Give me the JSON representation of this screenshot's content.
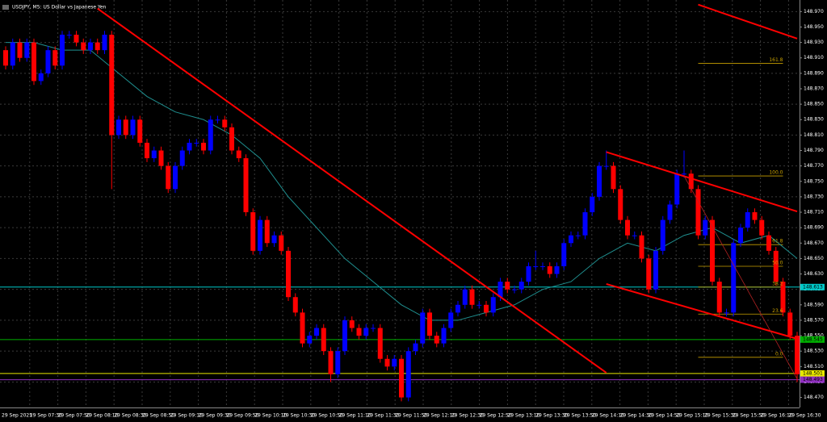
{
  "chart_data": {
    "type": "candlestick",
    "title": "USDJPY, M5:  US Dollar vs Japanese Yen",
    "bull_color": "#0000ff",
    "bear_color": "#ff0000",
    "grid": true,
    "ylim": [
      148.457,
      148.985
    ],
    "yticks": [
      {
        "value": 148.97,
        "label": "148.970"
      },
      {
        "value": 148.95,
        "label": "148.950"
      },
      {
        "value": 148.93,
        "label": "148.930"
      },
      {
        "value": 148.91,
        "label": "148.910"
      },
      {
        "value": 148.89,
        "label": "148.890"
      },
      {
        "value": 148.87,
        "label": "148.870"
      },
      {
        "value": 148.85,
        "label": "148.850"
      },
      {
        "value": 148.83,
        "label": "148.830"
      },
      {
        "value": 148.81,
        "label": "148.810"
      },
      {
        "value": 148.79,
        "label": "148.790"
      },
      {
        "value": 148.77,
        "label": "148.770"
      },
      {
        "value": 148.75,
        "label": "148.750"
      },
      {
        "value": 148.73,
        "label": "148.730"
      },
      {
        "value": 148.71,
        "label": "148.710"
      },
      {
        "value": 148.69,
        "label": "148.690"
      },
      {
        "value": 148.67,
        "label": "148.670"
      },
      {
        "value": 148.65,
        "label": "148.650"
      },
      {
        "value": 148.63,
        "label": "148.630"
      },
      {
        "value": 148.61,
        "label": "148.610"
      },
      {
        "value": 148.59,
        "label": "148.590"
      },
      {
        "value": 148.57,
        "label": "148.570"
      },
      {
        "value": 148.55,
        "label": "148.550"
      },
      {
        "value": 148.53,
        "label": "148.530"
      },
      {
        "value": 148.51,
        "label": "148.510"
      },
      {
        "value": 148.49,
        "label": "148.490"
      },
      {
        "value": 148.47,
        "label": "148.470"
      }
    ],
    "xticks": [
      "29 Sep 2025",
      "29 Sep 07:30",
      "29 Sep 07:50",
      "29 Sep 08:10",
      "29 Sep 08:30",
      "29 Sep 08:50",
      "29 Sep 09:10",
      "29 Sep 09:30",
      "29 Sep 09:50",
      "29 Sep 10:10",
      "29 Sep 10:30",
      "29 Sep 10:50",
      "29 Sep 11:10",
      "29 Sep 11:30",
      "29 Sep 11:50",
      "29 Sep 12:10",
      "29 Sep 12:30",
      "29 Sep 12:50",
      "29 Sep 13:10",
      "29 Sep 13:30",
      "29 Sep 13:50",
      "29 Sep 14:10",
      "29 Sep 14:30",
      "29 Sep 14:50",
      "29 Sep 15:10",
      "29 Sep 15:30",
      "29 Sep 15:50",
      "29 Sep 16:10",
      "29 Sep 16:30"
    ],
    "candles": [
      [
        148.92,
        148.925,
        148.895,
        148.9
      ],
      [
        148.9,
        148.935,
        148.895,
        148.93
      ],
      [
        148.93,
        148.935,
        148.905,
        148.91
      ],
      [
        148.91,
        148.935,
        148.905,
        148.93
      ],
      [
        148.93,
        148.935,
        148.875,
        148.88
      ],
      [
        148.88,
        148.895,
        148.875,
        148.89
      ],
      [
        148.89,
        148.925,
        148.885,
        148.92
      ],
      [
        148.92,
        148.925,
        148.895,
        148.9
      ],
      [
        148.9,
        148.945,
        148.895,
        148.94
      ],
      [
        148.94,
        148.945,
        148.935,
        148.94
      ],
      [
        148.94,
        148.945,
        148.925,
        148.93
      ],
      [
        148.93,
        148.935,
        148.915,
        148.92
      ],
      [
        148.92,
        148.935,
        148.915,
        148.93
      ],
      [
        148.93,
        148.935,
        148.915,
        148.92
      ],
      [
        148.92,
        148.945,
        148.915,
        148.94
      ],
      [
        148.94,
        148.945,
        148.74,
        148.81
      ],
      [
        148.81,
        148.835,
        148.805,
        148.83
      ],
      [
        148.83,
        148.835,
        148.805,
        148.81
      ],
      [
        148.81,
        148.835,
        148.805,
        148.83
      ],
      [
        148.83,
        148.835,
        148.795,
        148.8
      ],
      [
        148.8,
        148.805,
        148.775,
        148.78
      ],
      [
        148.78,
        148.795,
        148.775,
        148.79
      ],
      [
        148.79,
        148.795,
        148.765,
        148.77
      ],
      [
        148.77,
        148.775,
        148.735,
        148.74
      ],
      [
        148.74,
        148.775,
        148.735,
        148.77
      ],
      [
        148.77,
        148.795,
        148.765,
        148.79
      ],
      [
        148.79,
        148.805,
        148.785,
        148.8
      ],
      [
        148.8,
        148.805,
        148.795,
        148.8
      ],
      [
        148.8,
        148.805,
        148.785,
        148.79
      ],
      [
        148.79,
        148.835,
        148.785,
        148.83
      ],
      [
        148.83,
        148.835,
        148.825,
        148.83
      ],
      [
        148.83,
        148.835,
        148.815,
        148.82
      ],
      [
        148.82,
        148.825,
        148.785,
        148.79
      ],
      [
        148.79,
        148.795,
        148.775,
        148.78
      ],
      [
        148.78,
        148.785,
        148.705,
        148.71
      ],
      [
        148.71,
        148.715,
        148.655,
        148.66
      ],
      [
        148.66,
        148.705,
        148.655,
        148.7
      ],
      [
        148.7,
        148.705,
        148.665,
        148.67
      ],
      [
        148.67,
        148.685,
        148.665,
        148.68
      ],
      [
        148.68,
        148.685,
        148.655,
        148.66
      ],
      [
        148.66,
        148.665,
        148.595,
        148.6
      ],
      [
        148.6,
        148.605,
        148.575,
        148.58
      ],
      [
        148.58,
        148.585,
        148.535,
        148.54
      ],
      [
        148.54,
        148.555,
        148.535,
        148.55
      ],
      [
        148.55,
        148.565,
        148.545,
        148.56
      ],
      [
        148.56,
        148.565,
        148.525,
        148.53
      ],
      [
        148.53,
        148.535,
        148.49,
        148.5
      ],
      [
        148.5,
        148.535,
        148.495,
        148.53
      ],
      [
        148.53,
        148.575,
        148.525,
        148.57
      ],
      [
        148.57,
        148.575,
        148.555,
        148.56
      ],
      [
        148.56,
        148.565,
        148.545,
        148.55
      ],
      [
        148.55,
        148.565,
        148.545,
        148.56
      ],
      [
        148.56,
        148.565,
        148.555,
        148.56
      ],
      [
        148.56,
        148.565,
        148.515,
        148.52
      ],
      [
        148.52,
        148.525,
        148.505,
        148.51
      ],
      [
        148.51,
        148.525,
        148.505,
        148.52
      ],
      [
        148.52,
        148.525,
        148.465,
        148.47
      ],
      [
        148.47,
        148.535,
        148.465,
        148.53
      ],
      [
        148.53,
        148.545,
        148.525,
        148.54
      ],
      [
        148.54,
        148.585,
        148.535,
        148.58
      ],
      [
        148.58,
        148.585,
        148.545,
        148.55
      ],
      [
        148.55,
        148.555,
        148.535,
        148.54
      ],
      [
        148.54,
        148.565,
        148.535,
        148.56
      ],
      [
        148.56,
        148.585,
        148.555,
        148.58
      ],
      [
        148.58,
        148.595,
        148.575,
        148.59
      ],
      [
        148.59,
        148.615,
        148.585,
        148.61
      ],
      [
        148.61,
        148.615,
        148.585,
        148.59
      ],
      [
        148.59,
        148.595,
        148.585,
        148.59
      ],
      [
        148.59,
        148.595,
        148.575,
        148.58
      ],
      [
        148.58,
        148.605,
        148.575,
        148.6
      ],
      [
        148.6,
        148.625,
        148.595,
        148.62
      ],
      [
        148.62,
        148.625,
        148.605,
        148.61
      ],
      [
        148.61,
        148.615,
        148.605,
        148.61
      ],
      [
        148.61,
        148.625,
        148.605,
        148.62
      ],
      [
        148.62,
        148.645,
        148.615,
        148.64
      ],
      [
        148.64,
        148.66,
        148.635,
        148.64
      ],
      [
        148.64,
        148.645,
        148.635,
        148.64
      ],
      [
        148.64,
        148.645,
        148.625,
        148.63
      ],
      [
        148.63,
        148.645,
        148.625,
        148.64
      ],
      [
        148.64,
        148.675,
        148.635,
        148.67
      ],
      [
        148.67,
        148.685,
        148.665,
        148.68
      ],
      [
        148.68,
        148.685,
        148.675,
        148.68
      ],
      [
        148.68,
        148.715,
        148.675,
        148.71
      ],
      [
        148.71,
        148.735,
        148.705,
        148.73
      ],
      [
        148.73,
        148.775,
        148.725,
        148.77
      ],
      [
        148.77,
        148.79,
        148.765,
        148.77
      ],
      [
        148.77,
        148.775,
        148.735,
        148.74
      ],
      [
        148.74,
        148.745,
        148.695,
        148.7
      ],
      [
        148.7,
        148.705,
        148.675,
        148.68
      ],
      [
        148.68,
        148.685,
        148.675,
        148.68
      ],
      [
        148.68,
        148.685,
        148.645,
        148.65
      ],
      [
        148.65,
        148.655,
        148.605,
        148.61
      ],
      [
        148.61,
        148.665,
        148.605,
        148.66
      ],
      [
        148.66,
        148.705,
        148.655,
        148.7
      ],
      [
        148.7,
        148.725,
        148.695,
        148.72
      ],
      [
        148.72,
        148.765,
        148.715,
        148.76
      ],
      [
        148.76,
        148.79,
        148.755,
        148.76
      ],
      [
        148.76,
        148.765,
        148.735,
        148.74
      ],
      [
        148.74,
        148.745,
        148.675,
        148.68
      ],
      [
        148.68,
        148.705,
        148.675,
        148.7
      ],
      [
        148.7,
        148.705,
        148.615,
        148.62
      ],
      [
        148.62,
        148.625,
        148.575,
        148.58
      ],
      [
        148.58,
        148.585,
        148.575,
        148.58
      ],
      [
        148.58,
        148.675,
        148.575,
        148.67
      ],
      [
        148.67,
        148.695,
        148.665,
        148.69
      ],
      [
        148.69,
        148.715,
        148.685,
        148.71
      ],
      [
        148.71,
        148.715,
        148.695,
        148.7
      ],
      [
        148.7,
        148.705,
        148.675,
        148.68
      ],
      [
        148.68,
        148.685,
        148.655,
        148.66
      ],
      [
        148.66,
        148.665,
        148.615,
        148.62
      ],
      [
        148.62,
        148.625,
        148.575,
        148.58
      ],
      [
        148.58,
        148.585,
        148.545,
        148.55
      ],
      [
        148.55,
        148.555,
        148.49,
        148.5
      ]
    ],
    "ma": {
      "color": "#1f8f8f",
      "x": [
        0,
        4,
        8,
        12,
        16,
        20,
        24,
        28,
        32,
        36,
        40,
        44,
        48,
        52,
        56,
        60,
        64,
        68,
        72,
        76,
        80,
        84,
        88,
        92,
        96,
        100,
        104,
        108,
        112
      ],
      "values": [
        148.93,
        148.93,
        148.92,
        148.92,
        148.89,
        148.86,
        148.84,
        148.83,
        148.81,
        148.78,
        148.73,
        148.69,
        148.65,
        148.62,
        148.59,
        148.57,
        148.57,
        148.58,
        148.59,
        148.61,
        148.62,
        148.65,
        148.67,
        148.66,
        148.68,
        148.69,
        148.67,
        148.68,
        148.65
      ]
    },
    "trendlines": [
      {
        "x": [
          13,
          85
        ],
        "y": [
          148.974,
          148.502
        ],
        "color": "#ff0000"
      },
      {
        "x": [
          98,
          112
        ],
        "y": [
          148.979,
          148.935
        ],
        "color": "#ff0000"
      },
      {
        "x": [
          85,
          112
        ],
        "y": [
          148.788,
          148.711
        ],
        "color": "#ff0000"
      },
      {
        "x": [
          85,
          112
        ],
        "y": [
          148.617,
          148.546
        ],
        "color": "#ff0000"
      },
      {
        "x": [
          96,
          112
        ],
        "y": [
          148.757,
          148.494
        ],
        "color": "#b22222"
      }
    ],
    "fib": {
      "color": "#c8a000",
      "x": [
        98,
        110
      ],
      "levels": [
        {
          "label": "161.8",
          "price": 148.903
        },
        {
          "label": "100.0",
          "price": 148.757
        },
        {
          "label": "61.8",
          "price": 148.668
        },
        {
          "label": "50.0",
          "price": 148.64
        },
        {
          "label": "38.2",
          "price": 148.613
        },
        {
          "label": "23.6",
          "price": 148.578
        },
        {
          "label": "0.0",
          "price": 148.522
        }
      ]
    },
    "hlines": [
      {
        "price": 148.613,
        "label": "148.613",
        "color": "#00c8c8"
      },
      {
        "price": 148.545,
        "label": "148.545",
        "color": "#00b000"
      },
      {
        "price": 148.501,
        "label": "148.501",
        "color": "#e8e800"
      },
      {
        "price": 148.493,
        "label": "148.493",
        "color": "#9030c0"
      }
    ]
  }
}
